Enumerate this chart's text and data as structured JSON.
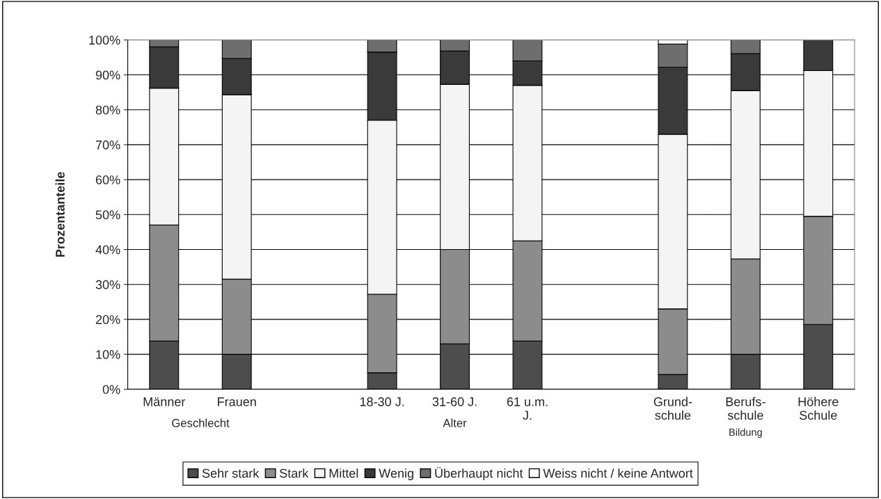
{
  "chart_data": {
    "type": "bar",
    "stacked": true,
    "ylabel": "Prozentanteile",
    "categories": [
      "Männer",
      "Frauen",
      null,
      "18-30 J.",
      "31-60 J.",
      "61 u.m.\nJ.",
      null,
      "Grund-\nschule",
      "Berufs-\nschule",
      "Höhere\nSchule"
    ],
    "series": [
      {
        "name": "Sehr stark",
        "color": "#4d4d4d",
        "values": [
          13.8,
          10,
          null,
          4.7,
          13,
          13.8,
          null,
          4.2,
          10,
          18.5
        ]
      },
      {
        "name": "Stark",
        "color": "#8c8c8c",
        "values": [
          33.2,
          21.5,
          null,
          22.5,
          27,
          28.7,
          null,
          18.8,
          27.3,
          31
        ]
      },
      {
        "name": "Mittel",
        "color": "#f4f4f4",
        "values": [
          39.2,
          52.8,
          null,
          49.8,
          47.3,
          44.5,
          null,
          50,
          48.2,
          41.7
        ]
      },
      {
        "name": "Wenig",
        "color": "#3a3a3a",
        "values": [
          11.8,
          10.4,
          null,
          19.5,
          9.5,
          7,
          null,
          19.2,
          10.6,
          8.8
        ]
      },
      {
        "name": "Überhaupt nicht",
        "color": "#6e6e6e",
        "values": [
          2,
          5.3,
          null,
          3.5,
          3.2,
          6,
          null,
          6.6,
          3.9,
          null
        ]
      },
      {
        "name": "Weiss nicht / keine Antwort",
        "color": "#ffffff",
        "values": [
          null,
          null,
          null,
          null,
          null,
          null,
          null,
          1.2,
          null,
          null
        ]
      }
    ],
    "ylim": [
      0,
      100
    ],
    "yticks": [
      {
        "value": 0,
        "label": "0%"
      },
      {
        "value": 10,
        "label": "10%"
      },
      {
        "value": 20,
        "label": "20%"
      },
      {
        "value": 30,
        "label": "30%"
      },
      {
        "value": 40,
        "label": "40%"
      },
      {
        "value": 50,
        "label": "50%"
      },
      {
        "value": 60,
        "label": "60%"
      },
      {
        "value": 70,
        "label": "70%"
      },
      {
        "value": 80,
        "label": "80%"
      },
      {
        "value": 90,
        "label": "90%"
      },
      {
        "value": 100,
        "label": "100%"
      }
    ],
    "grid": "y",
    "legend": "bottom",
    "annotations": [
      "Geschlecht",
      "Alter",
      "Bildung"
    ]
  }
}
